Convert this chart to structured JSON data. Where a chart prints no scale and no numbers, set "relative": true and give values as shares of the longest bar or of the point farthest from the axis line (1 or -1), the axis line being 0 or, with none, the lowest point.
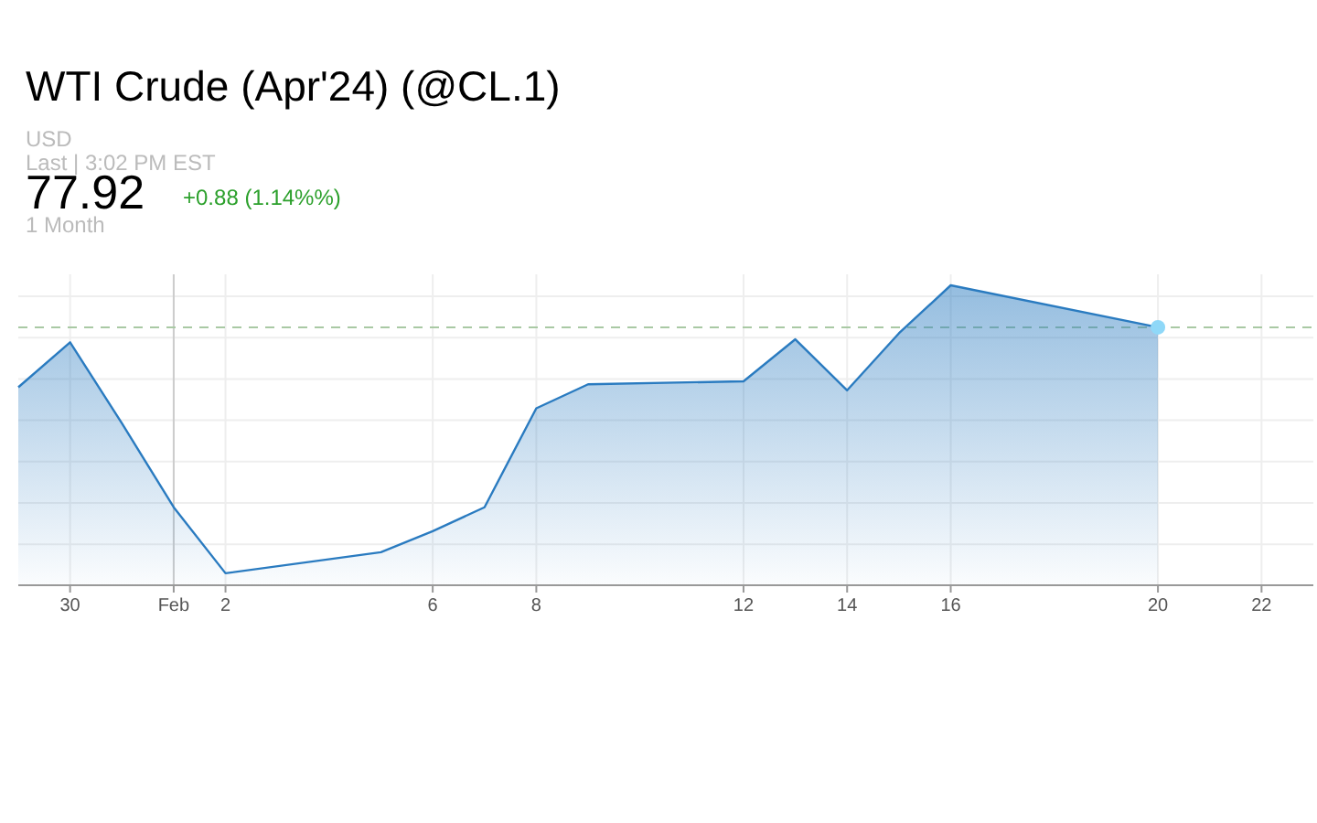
{
  "chart_data": {
    "type": "area",
    "title": "WTI Crude (Apr'24) (@CL.1)",
    "subtitle": "USD",
    "annotations": [
      "Last | 3:02 PM EST",
      "77.92",
      "+0.88 (1.14%%)",
      "1 Month"
    ],
    "relative": true,
    "x": [
      "2024-01-29",
      "2024-01-30",
      "2024-01-31",
      "2024-02-01",
      "2024-02-02",
      "2024-02-05",
      "2024-02-06",
      "2024-02-07",
      "2024-02-08",
      "2024-02-09",
      "2024-02-12",
      "2024-02-13",
      "2024-02-14",
      "2024-02-15",
      "2024-02-16",
      "2024-02-20"
    ],
    "series": [
      {
        "color": "#2a7bc0",
        "values": [
          0.66,
          0.81,
          0.54,
          0.26,
          0.04,
          0.11,
          0.18,
          0.26,
          0.59,
          0.67,
          0.68,
          0.82,
          0.65,
          0.84,
          1,
          0.86
        ]
      }
    ],
    "xlim": [
      "2024-01-29",
      "2024-02-23"
    ],
    "xticks": [
      {
        "value": "2024-01-30",
        "label": "30"
      },
      {
        "value": "2024-02-01",
        "label": "Feb"
      },
      {
        "value": "2024-02-02",
        "label": "2"
      },
      {
        "value": "2024-02-06",
        "label": "6"
      },
      {
        "value": "2024-02-08",
        "label": "8"
      },
      {
        "value": "2024-02-12",
        "label": "12"
      },
      {
        "value": "2024-02-14",
        "label": "14"
      },
      {
        "value": "2024-02-16",
        "label": "16"
      },
      {
        "value": "2024-02-20",
        "label": "20"
      },
      {
        "value": "2024-02-22",
        "label": "22"
      }
    ],
    "ref_lines": [
      {
        "axis": "y",
        "value": 0.86,
        "color": "#a9c9a4",
        "line_style": "dashed"
      },
      {
        "axis": "x",
        "value": "2024-02-01",
        "color": "#cccccc"
      }
    ],
    "grid": true,
    "marker": "none"
  }
}
